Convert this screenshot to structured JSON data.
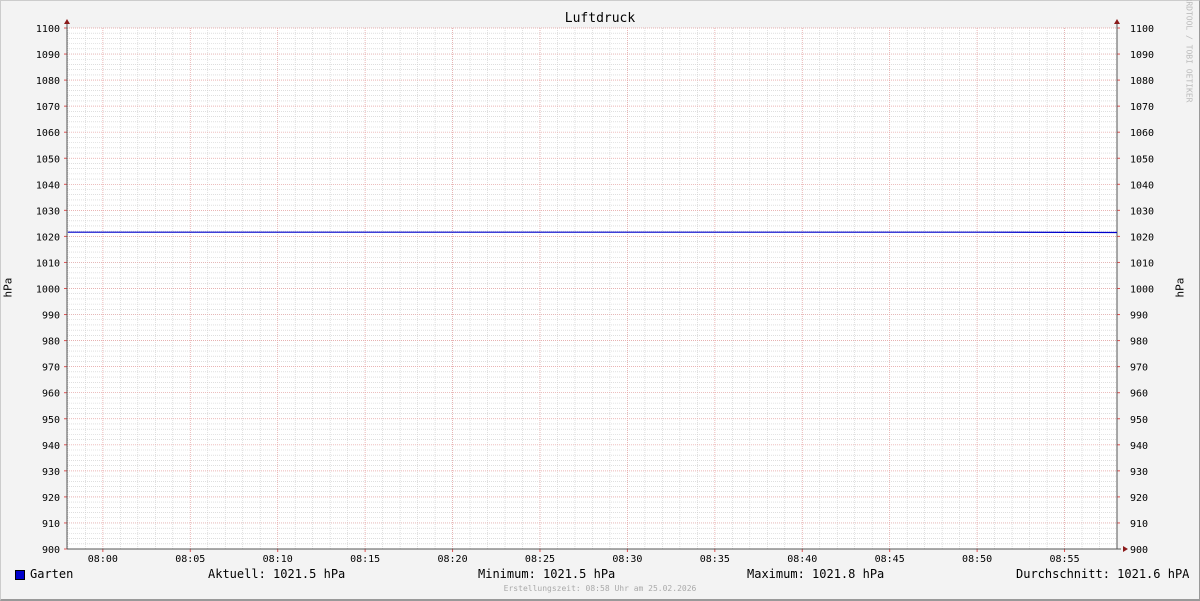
{
  "chart_data": {
    "type": "line",
    "title": "Luftdruck",
    "ylabel": "hPa",
    "ylabel_right": "hPa",
    "ylim": [
      900,
      1100
    ],
    "y_ticks": [
      900,
      910,
      920,
      930,
      940,
      950,
      960,
      970,
      980,
      990,
      1000,
      1010,
      1020,
      1030,
      1040,
      1050,
      1060,
      1070,
      1080,
      1090,
      1100
    ],
    "x_range": [
      "07:58",
      "08:58"
    ],
    "x_ticks": [
      "08:00",
      "08:05",
      "08:10",
      "08:15",
      "08:20",
      "08:25",
      "08:30",
      "08:35",
      "08:40",
      "08:45",
      "08:50",
      "08:55"
    ],
    "grid": true,
    "series": [
      {
        "name": "Garten",
        "color": "#0000cc",
        "x": [
          "07:58",
          "08:10",
          "08:20",
          "08:30",
          "08:40",
          "08:50",
          "08:58"
        ],
        "values": [
          1021.6,
          1021.6,
          1021.6,
          1021.6,
          1021.6,
          1021.6,
          1021.5
        ]
      }
    ],
    "legend": {
      "placement": "bottom",
      "series_label": "Garten",
      "aktuell": "Aktuell: 1021.5 hPa",
      "minimum": "Minimum: 1021.5 hPa",
      "maximum": "Maximum: 1021.8 hPa",
      "durchschnitt": "Durchschnitt: 1021.6 hPA"
    },
    "watermark": "RRDTOOL / TOBI OETIKER",
    "footer": "Erstellungszeit: 08:58 Uhr am 25.02.2026"
  }
}
